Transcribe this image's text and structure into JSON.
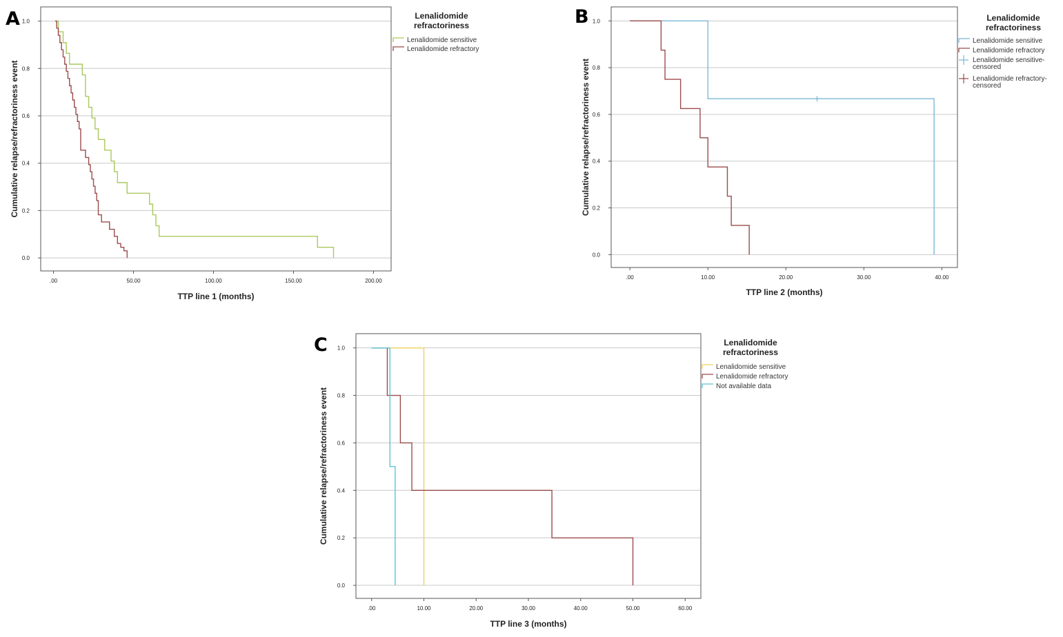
{
  "chart_data": [
    {
      "panel": "A",
      "type": "line",
      "xlabel": "TTP line 1 (months)",
      "ylabel": "Cumulative relapse/refractoriness event",
      "xlim": [
        -8,
        211
      ],
      "ylim": [
        -0.055,
        1.06
      ],
      "xticks": [
        0,
        50,
        100,
        150,
        200
      ],
      "xtick_labels": [
        ".00",
        "50.00",
        "100.00",
        "150.00",
        "200.00"
      ],
      "yticks": [
        0.0,
        0.2,
        0.4,
        0.6,
        0.8,
        1.0
      ],
      "ytick_labels": [
        "0.0",
        "0.2",
        "0.4",
        "0.6",
        "0.8",
        "1.0"
      ],
      "grid": true,
      "legend_title": [
        "Lenalidomide",
        "refractoriness"
      ],
      "legend_position": "top-right",
      "series": [
        {
          "name": "Lenalidomide sensitive",
          "color": "#a9c95c",
          "x": [
            1,
            3,
            6,
            8,
            10,
            12,
            18,
            20,
            22,
            24,
            26,
            28,
            32,
            36,
            38,
            40,
            46,
            60,
            62,
            64,
            66,
            165,
            175
          ],
          "y": [
            1.0,
            0.955,
            0.909,
            0.864,
            0.818,
            0.818,
            0.773,
            0.682,
            0.636,
            0.591,
            0.545,
            0.5,
            0.455,
            0.409,
            0.364,
            0.318,
            0.273,
            0.227,
            0.182,
            0.136,
            0.091,
            0.045,
            0.0
          ]
        },
        {
          "name": "Lenalidomide refractory",
          "color": "#9b4b4b",
          "x": [
            1,
            2,
            3,
            4,
            5,
            6,
            7,
            8,
            9,
            10,
            11,
            12,
            13,
            14,
            15,
            16,
            17,
            20,
            22,
            23,
            24,
            25,
            26,
            27,
            28,
            30,
            35,
            38,
            40,
            42,
            44,
            46
          ],
          "y": [
            1.0,
            0.97,
            0.94,
            0.909,
            0.879,
            0.848,
            0.818,
            0.788,
            0.758,
            0.727,
            0.697,
            0.667,
            0.636,
            0.606,
            0.576,
            0.545,
            0.455,
            0.424,
            0.394,
            0.364,
            0.333,
            0.303,
            0.273,
            0.242,
            0.182,
            0.152,
            0.121,
            0.091,
            0.061,
            0.045,
            0.03,
            0.0
          ]
        }
      ]
    },
    {
      "panel": "B",
      "type": "line",
      "xlabel": "TTP line 2 (months)",
      "ylabel": "Cumulative relapse/refractoriness event",
      "xlim": [
        -2.4,
        42
      ],
      "ylim": [
        -0.055,
        1.06
      ],
      "xticks": [
        0,
        10,
        20,
        30,
        40
      ],
      "xtick_labels": [
        ".00",
        "10.00",
        "20.00",
        "30.00",
        "40.00"
      ],
      "yticks": [
        0.0,
        0.2,
        0.4,
        0.6,
        0.8,
        1.0
      ],
      "ytick_labels": [
        "0.0",
        "0.2",
        "0.4",
        "0.6",
        "0.8",
        "1.0"
      ],
      "grid": true,
      "legend_title": [
        "Lenalidomide",
        "refractoriness"
      ],
      "legend_position": "top-right",
      "legend_entries": [
        {
          "label": [
            "Lenalidomide sensitive"
          ],
          "color": "#7ab8d6",
          "kind": "line"
        },
        {
          "label": [
            "Lenalidomide refractory"
          ],
          "color": "#9b4b4b",
          "kind": "line"
        },
        {
          "label": [
            "Lenalidomide sensitive-",
            "censored"
          ],
          "color": "#7ab8d6",
          "kind": "plus"
        },
        {
          "label": [
            "Lenalidomide refractory-",
            "censored"
          ],
          "color": "#9b4b4b",
          "kind": "plus"
        }
      ],
      "series": [
        {
          "name": "Lenalidomide sensitive",
          "color": "#7ab8d6",
          "x": [
            0,
            10,
            39
          ],
          "y": [
            1.0,
            0.667,
            0.0
          ],
          "censored": [
            [
              24,
              0.667
            ]
          ]
        },
        {
          "name": "Lenalidomide refractory",
          "color": "#9b4b4b",
          "x": [
            0,
            4,
            4.5,
            6.5,
            9,
            10,
            12.5,
            13,
            15.3
          ],
          "y": [
            1.0,
            0.875,
            0.75,
            0.625,
            0.5,
            0.375,
            0.25,
            0.125,
            0.0
          ],
          "censored": []
        }
      ]
    },
    {
      "panel": "C",
      "type": "line",
      "xlabel": "TTP line 3 (months)",
      "ylabel": "Cumulative relapse/refractoriness event",
      "xlim": [
        -3,
        63
      ],
      "ylim": [
        -0.055,
        1.06
      ],
      "xticks": [
        0,
        10,
        20,
        30,
        40,
        50,
        60
      ],
      "xtick_labels": [
        ".00",
        "10.00",
        "20.00",
        "30.00",
        "40.00",
        "50.00",
        "60.00"
      ],
      "yticks": [
        0.0,
        0.2,
        0.4,
        0.6,
        0.8,
        1.0
      ],
      "ytick_labels": [
        "0.0",
        "0.2",
        "0.4",
        "0.6",
        "0.8",
        "1.0"
      ],
      "grid": true,
      "legend_title": [
        "Lenalidomide",
        "refractoriness"
      ],
      "legend_position": "top-right",
      "series": [
        {
          "name": "Lenalidomide sensitive",
          "color": "#f0d060",
          "x": [
            0,
            10
          ],
          "y": [
            1.0,
            0.0
          ]
        },
        {
          "name": "Lenalidomide refractory",
          "color": "#9b4b4b",
          "x": [
            0,
            3,
            5.5,
            7.7,
            34.5,
            50
          ],
          "y": [
            1.0,
            0.8,
            0.6,
            0.4,
            0.2,
            0.0
          ]
        },
        {
          "name": "Not available data",
          "color": "#5bc4d4",
          "x": [
            0,
            3.5,
            4.5
          ],
          "y": [
            1.0,
            0.5,
            0.0
          ]
        }
      ]
    }
  ]
}
